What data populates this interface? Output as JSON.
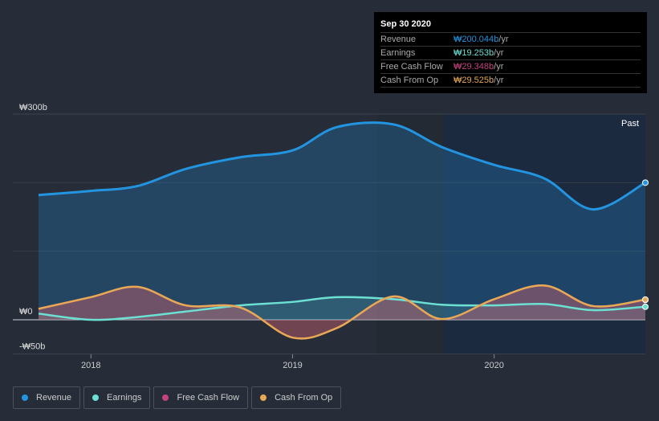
{
  "tooltip": {
    "date": "Sep 30 2020",
    "rows": [
      {
        "label": "Revenue",
        "value": "₩200.044b",
        "unit": " /yr",
        "color": "#2394df"
      },
      {
        "label": "Earnings",
        "value": "₩19.253b",
        "unit": " /yr",
        "color": "#6ce0d3"
      },
      {
        "label": "Free Cash Flow",
        "value": "₩29.348b",
        "unit": " /yr",
        "color": "#c3427f"
      },
      {
        "label": "Cash From Op",
        "value": "₩29.525b",
        "unit": " /yr",
        "color": "#e6a954"
      }
    ]
  },
  "chart_data": {
    "type": "area",
    "y_tick_labels": [
      "₩300b",
      "₩0",
      "-₩50b"
    ],
    "y_ticks": [
      300,
      0,
      -50
    ],
    "ylim": [
      -50,
      300
    ],
    "x_tick_labels": [
      "2018",
      "2019",
      "2020"
    ],
    "x_ticks": [
      2018,
      2019,
      2020
    ],
    "xlim": [
      2017.74,
      2020.75
    ],
    "past_label": "Past",
    "past_start": 2019.75,
    "x": [
      2017.74,
      2018.0,
      2018.23,
      2018.47,
      2018.74,
      2019.0,
      2019.22,
      2019.5,
      2019.74,
      2020.0,
      2020.25,
      2020.49,
      2020.75
    ],
    "series": [
      {
        "name": "Revenue",
        "color": "#2394df",
        "values": [
          182,
          188,
          195,
          220,
          237,
          247,
          281,
          285,
          252,
          226,
          206,
          161,
          200
        ]
      },
      {
        "name": "Earnings",
        "color": "#6ce0d3",
        "values": [
          9,
          0,
          4,
          12,
          21,
          26,
          33,
          30,
          22,
          21,
          23,
          14,
          19
        ]
      },
      {
        "name": "Free Cash Flow",
        "color": "#c3427f",
        "values": [
          16,
          33,
          48,
          21,
          18,
          -26,
          -12,
          34,
          1,
          30,
          50,
          20,
          29
        ]
      },
      {
        "name": "Cash From Op",
        "color": "#e6a954",
        "values": [
          16,
          33,
          48,
          21,
          18,
          -26,
          -12,
          34,
          1,
          30,
          50,
          20,
          29.5
        ]
      }
    ]
  }
}
